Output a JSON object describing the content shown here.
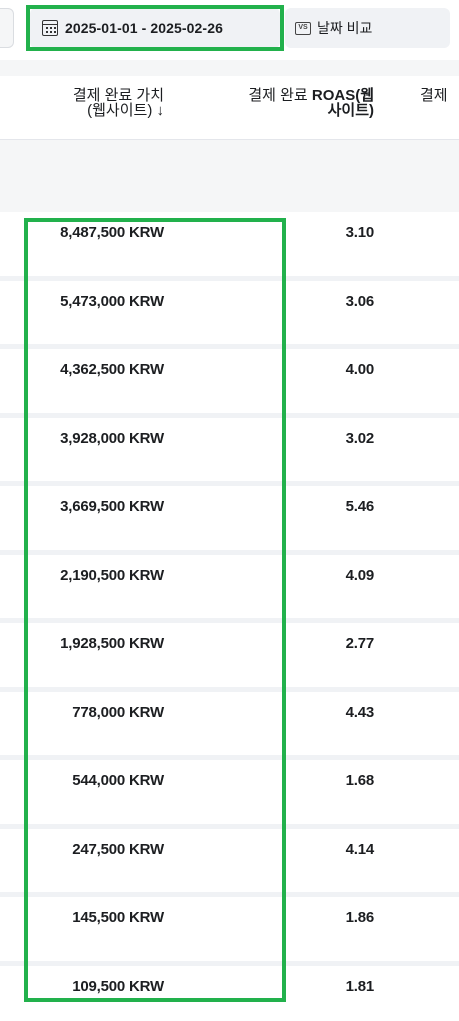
{
  "toolbar": {
    "date_range": "2025-01-01 - 2025-02-26",
    "compare_label": "날짜 비교",
    "compare_icon_text": "VS",
    "calendar_icon": "calendar-icon",
    "highlight_color": "#22b14c"
  },
  "table": {
    "headers": {
      "purchase_value_line1": "결제 완료 가치",
      "purchase_value_line2": "(웹사이트)",
      "sort_arrow": "↓",
      "roas_prefix": "결제 완료 ",
      "roas_bold_line1": "ROAS(웹",
      "roas_bold_line2": "사이트)",
      "third_partial": "결제"
    },
    "rows": [
      {
        "value": "8,487,500 KRW",
        "roas": "3.10"
      },
      {
        "value": "5,473,000 KRW",
        "roas": "3.06"
      },
      {
        "value": "4,362,500 KRW",
        "roas": "4.00"
      },
      {
        "value": "3,928,000 KRW",
        "roas": "3.02"
      },
      {
        "value": "3,669,500 KRW",
        "roas": "5.46"
      },
      {
        "value": "2,190,500 KRW",
        "roas": "4.09"
      },
      {
        "value": "1,928,500 KRW",
        "roas": "2.77"
      },
      {
        "value": "778,000 KRW",
        "roas": "4.43"
      },
      {
        "value": "544,000 KRW",
        "roas": "1.68"
      },
      {
        "value": "247,500 KRW",
        "roas": "4.14"
      },
      {
        "value": "145,500 KRW",
        "roas": "1.86"
      },
      {
        "value": "109,500 KRW",
        "roas": "1.81"
      }
    ]
  }
}
